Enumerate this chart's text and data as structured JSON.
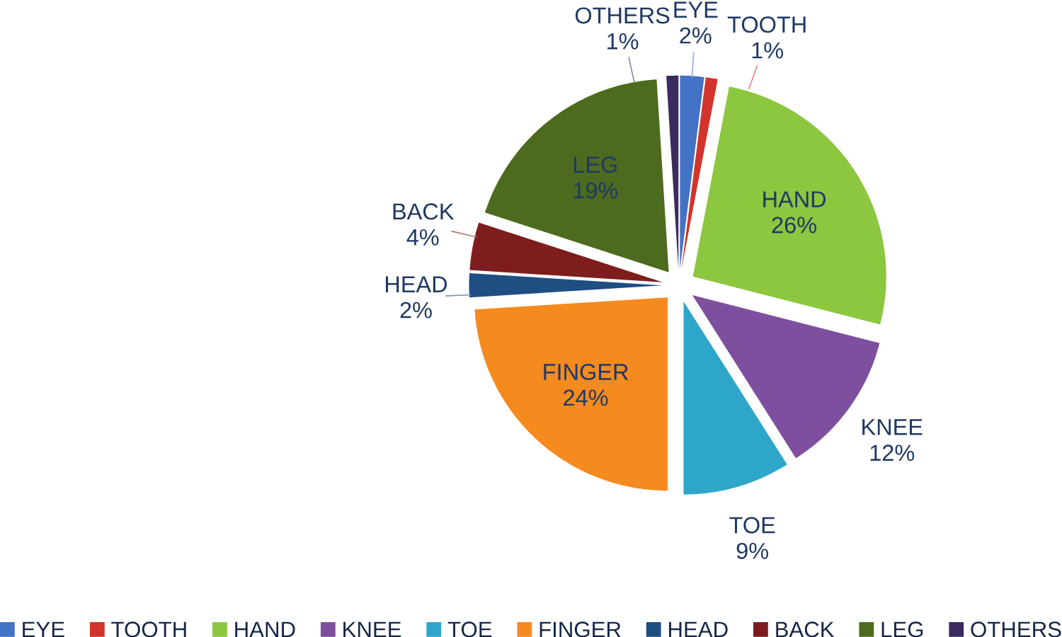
{
  "chart_data": {
    "type": "pie",
    "categories": [
      "EYE",
      "TOOTH",
      "HAND",
      "KNEE",
      "TOE",
      "FINGER",
      "HEAD",
      "BACK",
      "LEG",
      "OTHERS"
    ],
    "values": [
      2,
      1,
      26,
      12,
      9,
      24,
      2,
      4,
      19,
      1
    ],
    "value_labels": [
      "2%",
      "1%",
      "26%",
      "12%",
      "9%",
      "24%",
      "2%",
      "4%",
      "19%",
      "1%"
    ],
    "colors": [
      "#4472c4",
      "#d2342c",
      "#8dc63f",
      "#7e4f9e",
      "#2ea6c9",
      "#f58a1f",
      "#1f4e82",
      "#7e1d1d",
      "#4d6b1e",
      "#3b2a5e"
    ],
    "legend": "bottom"
  }
}
